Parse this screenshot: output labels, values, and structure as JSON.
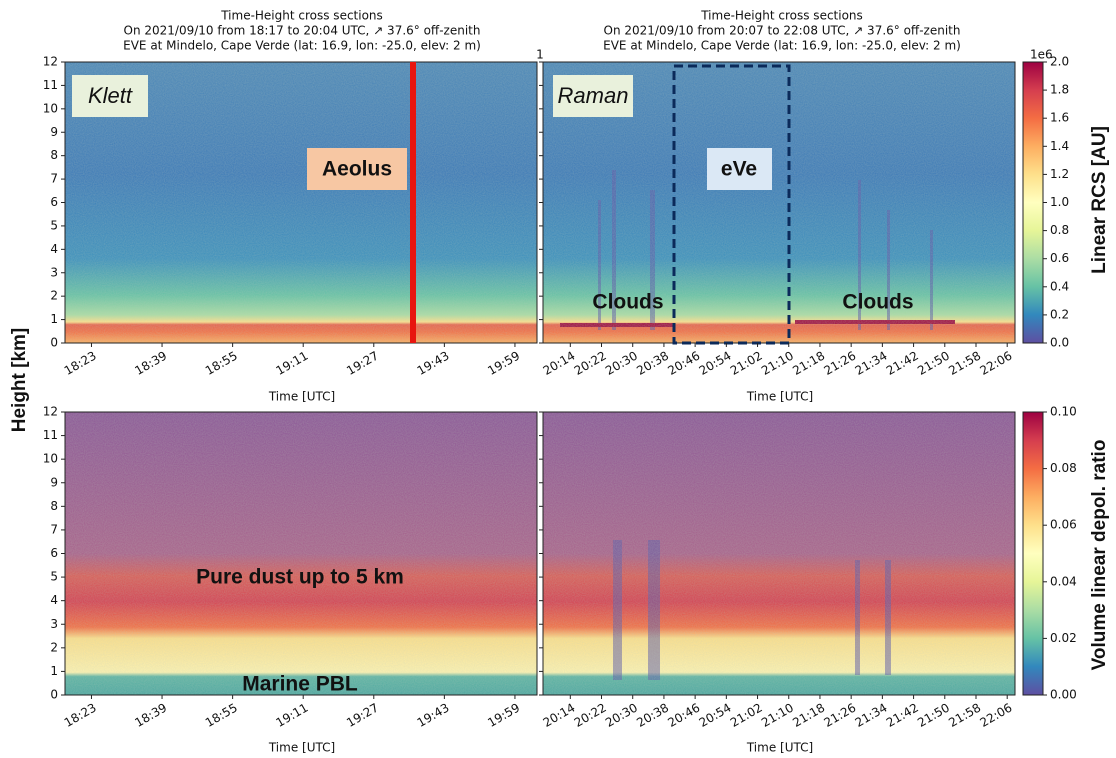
{
  "panels": [
    {
      "title": [
        "Time-Height cross sections",
        "On 2021/09/10 from 18:17 to 20:04 UTC, ↗ 37.6° off-zenith",
        "EVE at Mindelo, Cape Verde (lat: 16.9, lon: -25.0, elev: 2 m)"
      ],
      "xlim": [
        "18:17",
        "20:04"
      ],
      "xticks": [
        "18:23",
        "18:39",
        "18:55",
        "19:11",
        "19:27",
        "19:43",
        "19:59"
      ],
      "xlabel": "Time [UTC]",
      "method": "Klett",
      "annotation": "Aeolus",
      "bottom_annotations": [
        "Pure dust up to 5 km",
        "Marine PBL"
      ]
    },
    {
      "title": [
        "Time-Height cross sections",
        "On 2021/09/10 from 20:07 to 22:08 UTC, ↗ 37.6° off-zenith",
        "EVE at Mindelo, Cape Verde (lat: 16.9, lon: -25.0, elev: 2 m)"
      ],
      "xlim": [
        "20:07",
        "22:08"
      ],
      "xticks": [
        "20:14",
        "20:22",
        "20:30",
        "20:38",
        "20:46",
        "20:54",
        "21:02",
        "21:10",
        "21:18",
        "21:26",
        "21:34",
        "21:42",
        "21:50",
        "21:58",
        "22:06"
      ],
      "xlabel": "Time [UTC]",
      "method": "Raman",
      "annotation": "eVe",
      "clouds": [
        "Clouds",
        "Clouds"
      ]
    }
  ],
  "stray_label": "1",
  "ylabel": "Height [km]",
  "ylim": [
    0,
    12
  ],
  "yticks": [
    0,
    1,
    2,
    3,
    4,
    5,
    6,
    7,
    8,
    9,
    10,
    11,
    12
  ],
  "colorbars": [
    {
      "label": "Linear RCS [AU]",
      "offset": "1e6",
      "lim": [
        0,
        2
      ],
      "ticks": [
        {
          "value": 0,
          "label": "0.0"
        },
        {
          "value": 0.2,
          "label": "0.2"
        },
        {
          "value": 0.4,
          "label": "0.4"
        },
        {
          "value": 0.6,
          "label": "0.6"
        },
        {
          "value": 0.8,
          "label": "0.8"
        },
        {
          "value": 1,
          "label": "1.0"
        },
        {
          "value": 1.2,
          "label": "1.2"
        },
        {
          "value": 1.4,
          "label": "1.4"
        },
        {
          "value": 1.6,
          "label": "1.6"
        },
        {
          "value": 1.8,
          "label": "1.8"
        },
        {
          "value": 2,
          "label": "2.0"
        }
      ]
    },
    {
      "label": "Volume linear depol. ratio",
      "lim": [
        0,
        0.1
      ],
      "ticks": [
        {
          "value": 0,
          "label": "0.00"
        },
        {
          "value": 0.02,
          "label": "0.02"
        },
        {
          "value": 0.04,
          "label": "0.04"
        },
        {
          "value": 0.06,
          "label": "0.06"
        },
        {
          "value": 0.08,
          "label": "0.08"
        },
        {
          "value": 0.1,
          "label": "0.10"
        }
      ]
    }
  ]
}
